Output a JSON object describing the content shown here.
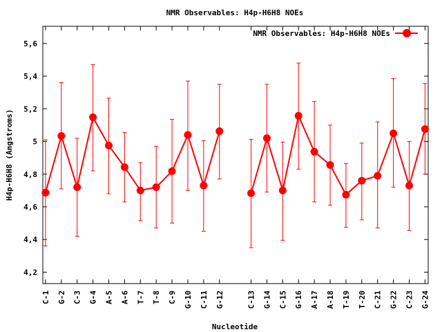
{
  "chart_data": {
    "type": "line",
    "title": "NMR Observables: H4p-H6H8 NOEs",
    "xlabel": "Nucleotide",
    "ylabel": "H4p-H6H8 (Angstroms)",
    "xlim": [
      0.83,
      25.2
    ],
    "ylim": [
      4.13,
      5.705
    ],
    "yticks": [
      4.2,
      4.4,
      4.6,
      4.8,
      5,
      5.2,
      5.4,
      5.6
    ],
    "ytick_labels": [
      "4,2",
      "4,4",
      "4,6",
      "4,8",
      "5",
      "5,2",
      "5,4",
      "5,6"
    ],
    "grid": false,
    "legend_position": "top-right",
    "series": [
      {
        "name": "NMR Observables: H4p-H6H8 NOEs",
        "color": "#ff0000",
        "categories": [
          "C-1",
          "G-2",
          "C-3",
          "G-4",
          "A-5",
          "A-6",
          "T-7",
          "T-8",
          "C-9",
          "G-10",
          "C-11",
          "G-12",
          "C-13",
          "G-14",
          "C-15",
          "G-16",
          "A-17",
          "A-18",
          "T-19",
          "T-20",
          "C-21",
          "G-22",
          "C-23",
          "G-24"
        ],
        "x": [
          1,
          2,
          3,
          4,
          5,
          6,
          7,
          8,
          9,
          10,
          11,
          12,
          14,
          15,
          16,
          17,
          18,
          19,
          20,
          21,
          22,
          23,
          24,
          25
        ],
        "values": [
          4.687,
          5.034,
          4.72,
          5.148,
          4.975,
          4.843,
          4.7,
          4.72,
          4.818,
          5.04,
          4.73,
          5.063,
          4.683,
          5.02,
          4.7,
          5.157,
          4.937,
          4.856,
          4.674,
          4.76,
          4.79,
          5.05,
          4.73,
          5.076
        ],
        "err_high": [
          5.01,
          5.36,
          5.02,
          5.47,
          5.265,
          5.055,
          4.87,
          4.97,
          5.135,
          5.37,
          5.005,
          5.35,
          5.013,
          5.35,
          4.996,
          5.48,
          5.245,
          5.1,
          4.865,
          4.99,
          5.12,
          5.385,
          5.0,
          5.355
        ],
        "err_low": [
          4.36,
          4.71,
          4.42,
          4.82,
          4.68,
          4.63,
          4.515,
          4.47,
          4.5,
          4.7,
          4.45,
          4.77,
          4.35,
          4.69,
          4.395,
          4.83,
          4.63,
          4.61,
          4.475,
          4.52,
          4.47,
          4.72,
          4.455,
          4.8
        ]
      }
    ]
  }
}
